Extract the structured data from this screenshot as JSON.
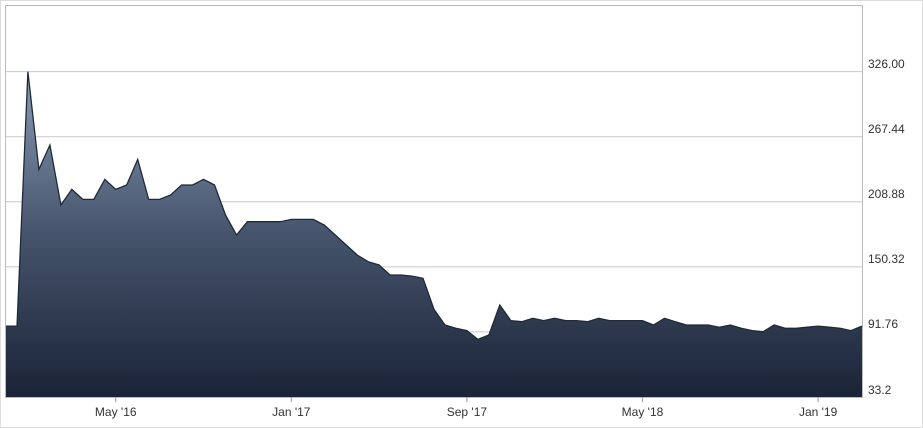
{
  "chart_data": {
    "type": "area",
    "categories": [
      null,
      null,
      null,
      null,
      null,
      null,
      null,
      null,
      null,
      null,
      "May '16",
      null,
      null,
      null,
      null,
      null,
      null,
      null,
      null,
      null,
      null,
      null,
      null,
      null,
      null,
      null,
      "Jan '17",
      null,
      null,
      null,
      null,
      null,
      null,
      null,
      null,
      null,
      null,
      null,
      null,
      null,
      null,
      null,
      "Sep '17",
      null,
      null,
      null,
      null,
      null,
      null,
      null,
      null,
      null,
      null,
      null,
      null,
      null,
      null,
      null,
      "May '18",
      null,
      null,
      null,
      null,
      null,
      null,
      null,
      null,
      null,
      null,
      null,
      null,
      null,
      null,
      null,
      "Jan '19",
      null,
      null,
      null,
      null
    ],
    "values": [
      97,
      97,
      326,
      238,
      260,
      206,
      220,
      211,
      211,
      229,
      220,
      224,
      247,
      211,
      211,
      215,
      224,
      224,
      229,
      224,
      197,
      179,
      191,
      191,
      191,
      191,
      193,
      193,
      193,
      188,
      179,
      170,
      161,
      155,
      152,
      143,
      143,
      142,
      140,
      112,
      98,
      95,
      93,
      85,
      89,
      116,
      102,
      101,
      104,
      102,
      104,
      102,
      102,
      101,
      104,
      102,
      102,
      102,
      102,
      98,
      104,
      101,
      98,
      98,
      98,
      96,
      98,
      95,
      93,
      92,
      98,
      95,
      95,
      96,
      97,
      96,
      95,
      93,
      97
    ],
    "color": "#1e2a3a",
    "ylim": [
      33.2,
      386
    ],
    "yticks": [
      {
        "value": 33.2,
        "label": "33.2"
      },
      91.76,
      150.32,
      208.88,
      267.44,
      {
        "value": 326,
        "label": "326.00"
      }
    ],
    "grid": true,
    "y_axis_side": "right"
  }
}
